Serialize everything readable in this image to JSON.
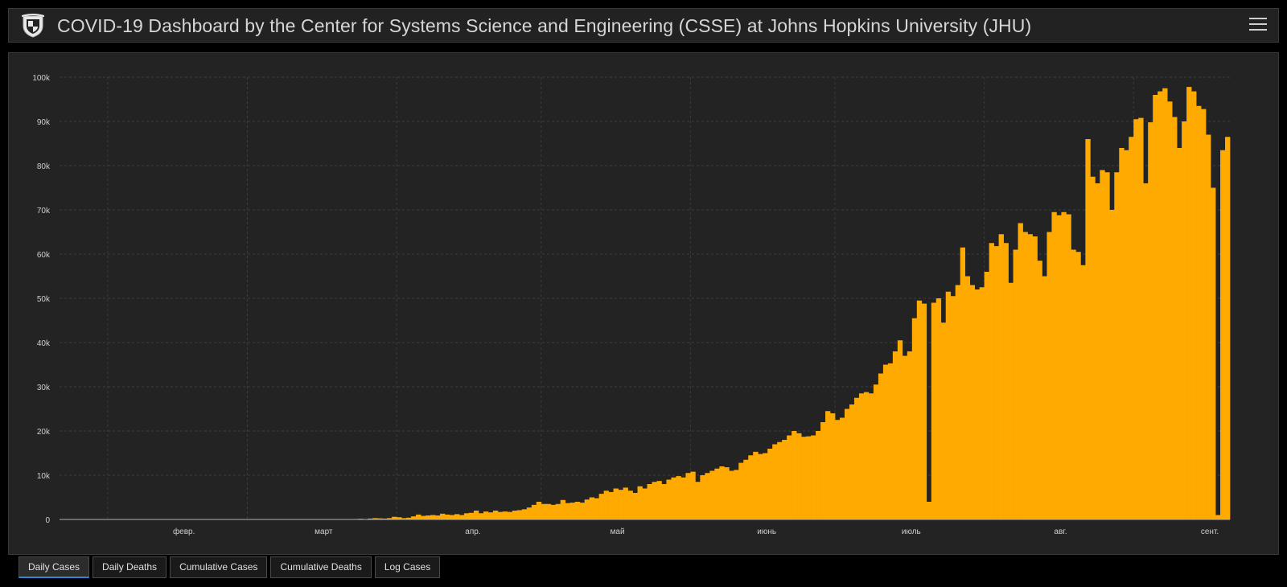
{
  "header": {
    "title": "COVID-19 Dashboard by the Center for Systems Science and Engineering (CSSE) at Johns Hopkins University (JHU)",
    "logo_icon": "jhu-shield-icon",
    "menu_icon": "hamburger-menu-icon"
  },
  "tabs": [
    {
      "label": "Daily Cases",
      "active": true
    },
    {
      "label": "Daily Deaths",
      "active": false
    },
    {
      "label": "Cumulative Cases",
      "active": false
    },
    {
      "label": "Cumulative Deaths",
      "active": false
    },
    {
      "label": "Log Cases",
      "active": false
    }
  ],
  "colors": {
    "bar": "#ffaa00",
    "background": "#232323",
    "grid": "#3c3c3c",
    "active_tab_accent": "#2f86d6"
  },
  "chart_data": {
    "type": "bar",
    "ylim": [
      0,
      100000
    ],
    "yticks": [
      {
        "value": 0,
        "label": "0"
      },
      {
        "value": 10000,
        "label": "10k"
      },
      {
        "value": 20000,
        "label": "20k"
      },
      {
        "value": 30000,
        "label": "30k"
      },
      {
        "value": 40000,
        "label": "40k"
      },
      {
        "value": 50000,
        "label": "50k"
      },
      {
        "value": 60000,
        "label": "60k"
      },
      {
        "value": 70000,
        "label": "70k"
      },
      {
        "value": 80000,
        "label": "80k"
      },
      {
        "value": 90000,
        "label": "90k"
      },
      {
        "value": 100000,
        "label": "100k"
      }
    ],
    "xticks": [
      {
        "index": 10,
        "label": "февр."
      },
      {
        "index": 39,
        "label": "март"
      },
      {
        "index": 70,
        "label": "апр."
      },
      {
        "index": 100,
        "label": "май"
      },
      {
        "index": 131,
        "label": "июнь"
      },
      {
        "index": 161,
        "label": "июль"
      },
      {
        "index": 192,
        "label": "авг."
      },
      {
        "index": 223,
        "label": "сент."
      }
    ],
    "grid": true,
    "legend": "none",
    "values": [
      0,
      0,
      0,
      0,
      0,
      0,
      0,
      0,
      0,
      0,
      0,
      0,
      0,
      0,
      0,
      0,
      0,
      0,
      0,
      0,
      0,
      0,
      0,
      0,
      0,
      0,
      0,
      0,
      0,
      0,
      0,
      0,
      0,
      0,
      0,
      0,
      0,
      0,
      0,
      0,
      0,
      0,
      0,
      0,
      0,
      0,
      0,
      0,
      0,
      0,
      0,
      0,
      0,
      0,
      0,
      0,
      0,
      0,
      0,
      0,
      50,
      100,
      150,
      100,
      200,
      300,
      250,
      200,
      300,
      600,
      500,
      300,
      400,
      700,
      1100,
      800,
      900,
      1000,
      900,
      1300,
      1100,
      1000,
      1200,
      1000,
      1400,
      1500,
      2000,
      1400,
      1800,
      1600,
      2000,
      1700,
      1800,
      1700,
      2000,
      2100,
      2300,
      2700,
      3300,
      4000,
      3500,
      3500,
      3300,
      3500,
      4400,
      3700,
      3800,
      4000,
      3800,
      4500,
      5000,
      4800,
      5800,
      6500,
      6200,
      7000,
      6700,
      7200,
      6500,
      6000,
      7500,
      7000,
      8000,
      8500,
      8700,
      8000,
      9000,
      9500,
      9800,
      9500,
      10500,
      10800,
      8500,
      10000,
      10500,
      11000,
      11500,
      12000,
      11800,
      11000,
      11200,
      12800,
      13500,
      14500,
      15300,
      14800,
      15000,
      16000,
      17000,
      17500,
      18000,
      19000,
      20000,
      19500,
      18700,
      18800,
      19000,
      20000,
      22000,
      24500,
      24000,
      22500,
      23000,
      25000,
      26000,
      27500,
      28500,
      28800,
      28500,
      30500,
      33000,
      35000,
      35300,
      38000,
      40500,
      37000,
      38000,
      45500,
      49500,
      48800,
      4000,
      49000,
      50000,
      44500,
      51500,
      50500,
      53000,
      61500,
      55000,
      53000,
      52000,
      52500,
      56000,
      62500,
      61800,
      64500,
      62500,
      53500,
      61000,
      67000,
      65000,
      64500,
      64000,
      58500,
      55000,
      65000,
      69500,
      68800,
      69500,
      69000,
      61000,
      60500,
      57500,
      86000,
      77500,
      76000,
      79000,
      78500,
      70000,
      78500,
      84000,
      83500,
      86500,
      90500,
      90800,
      76000,
      89800,
      96000,
      96800,
      97500,
      94500,
      91000,
      84000,
      90000,
      97800,
      96800,
      93500,
      92800,
      87000,
      75000,
      1000,
      83500,
      86500
    ]
  }
}
